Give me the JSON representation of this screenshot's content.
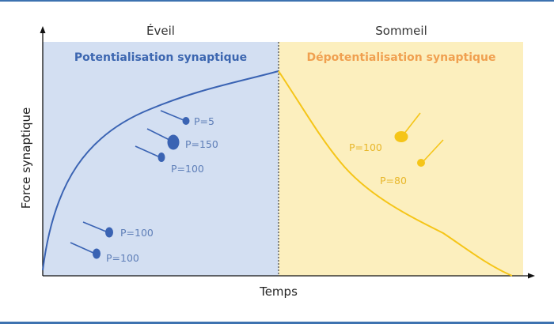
{
  "phases": {
    "left": "Éveil",
    "right": "Sommeil"
  },
  "regions": {
    "left_title": "Potentialisation synaptique",
    "right_title": "Dépotentialisation synaptique"
  },
  "axes": {
    "x_label": "Temps",
    "y_label": "Force synaptique"
  },
  "synapse_labels": {
    "wake": [
      "P=5",
      "P=150",
      "P=100",
      "P=100",
      "P=100"
    ],
    "sleep": [
      "P=100",
      "P=80"
    ]
  },
  "colors": {
    "wake_region": "#d3dff2",
    "sleep_region": "#fcefbe",
    "wake_curve": "#3a63b3",
    "sleep_curve": "#f5c518",
    "wake_title": "#3c66b0",
    "sleep_title": "#f0a050",
    "wake_label": "#5f7fb8",
    "sleep_label": "#e8b72a"
  }
}
